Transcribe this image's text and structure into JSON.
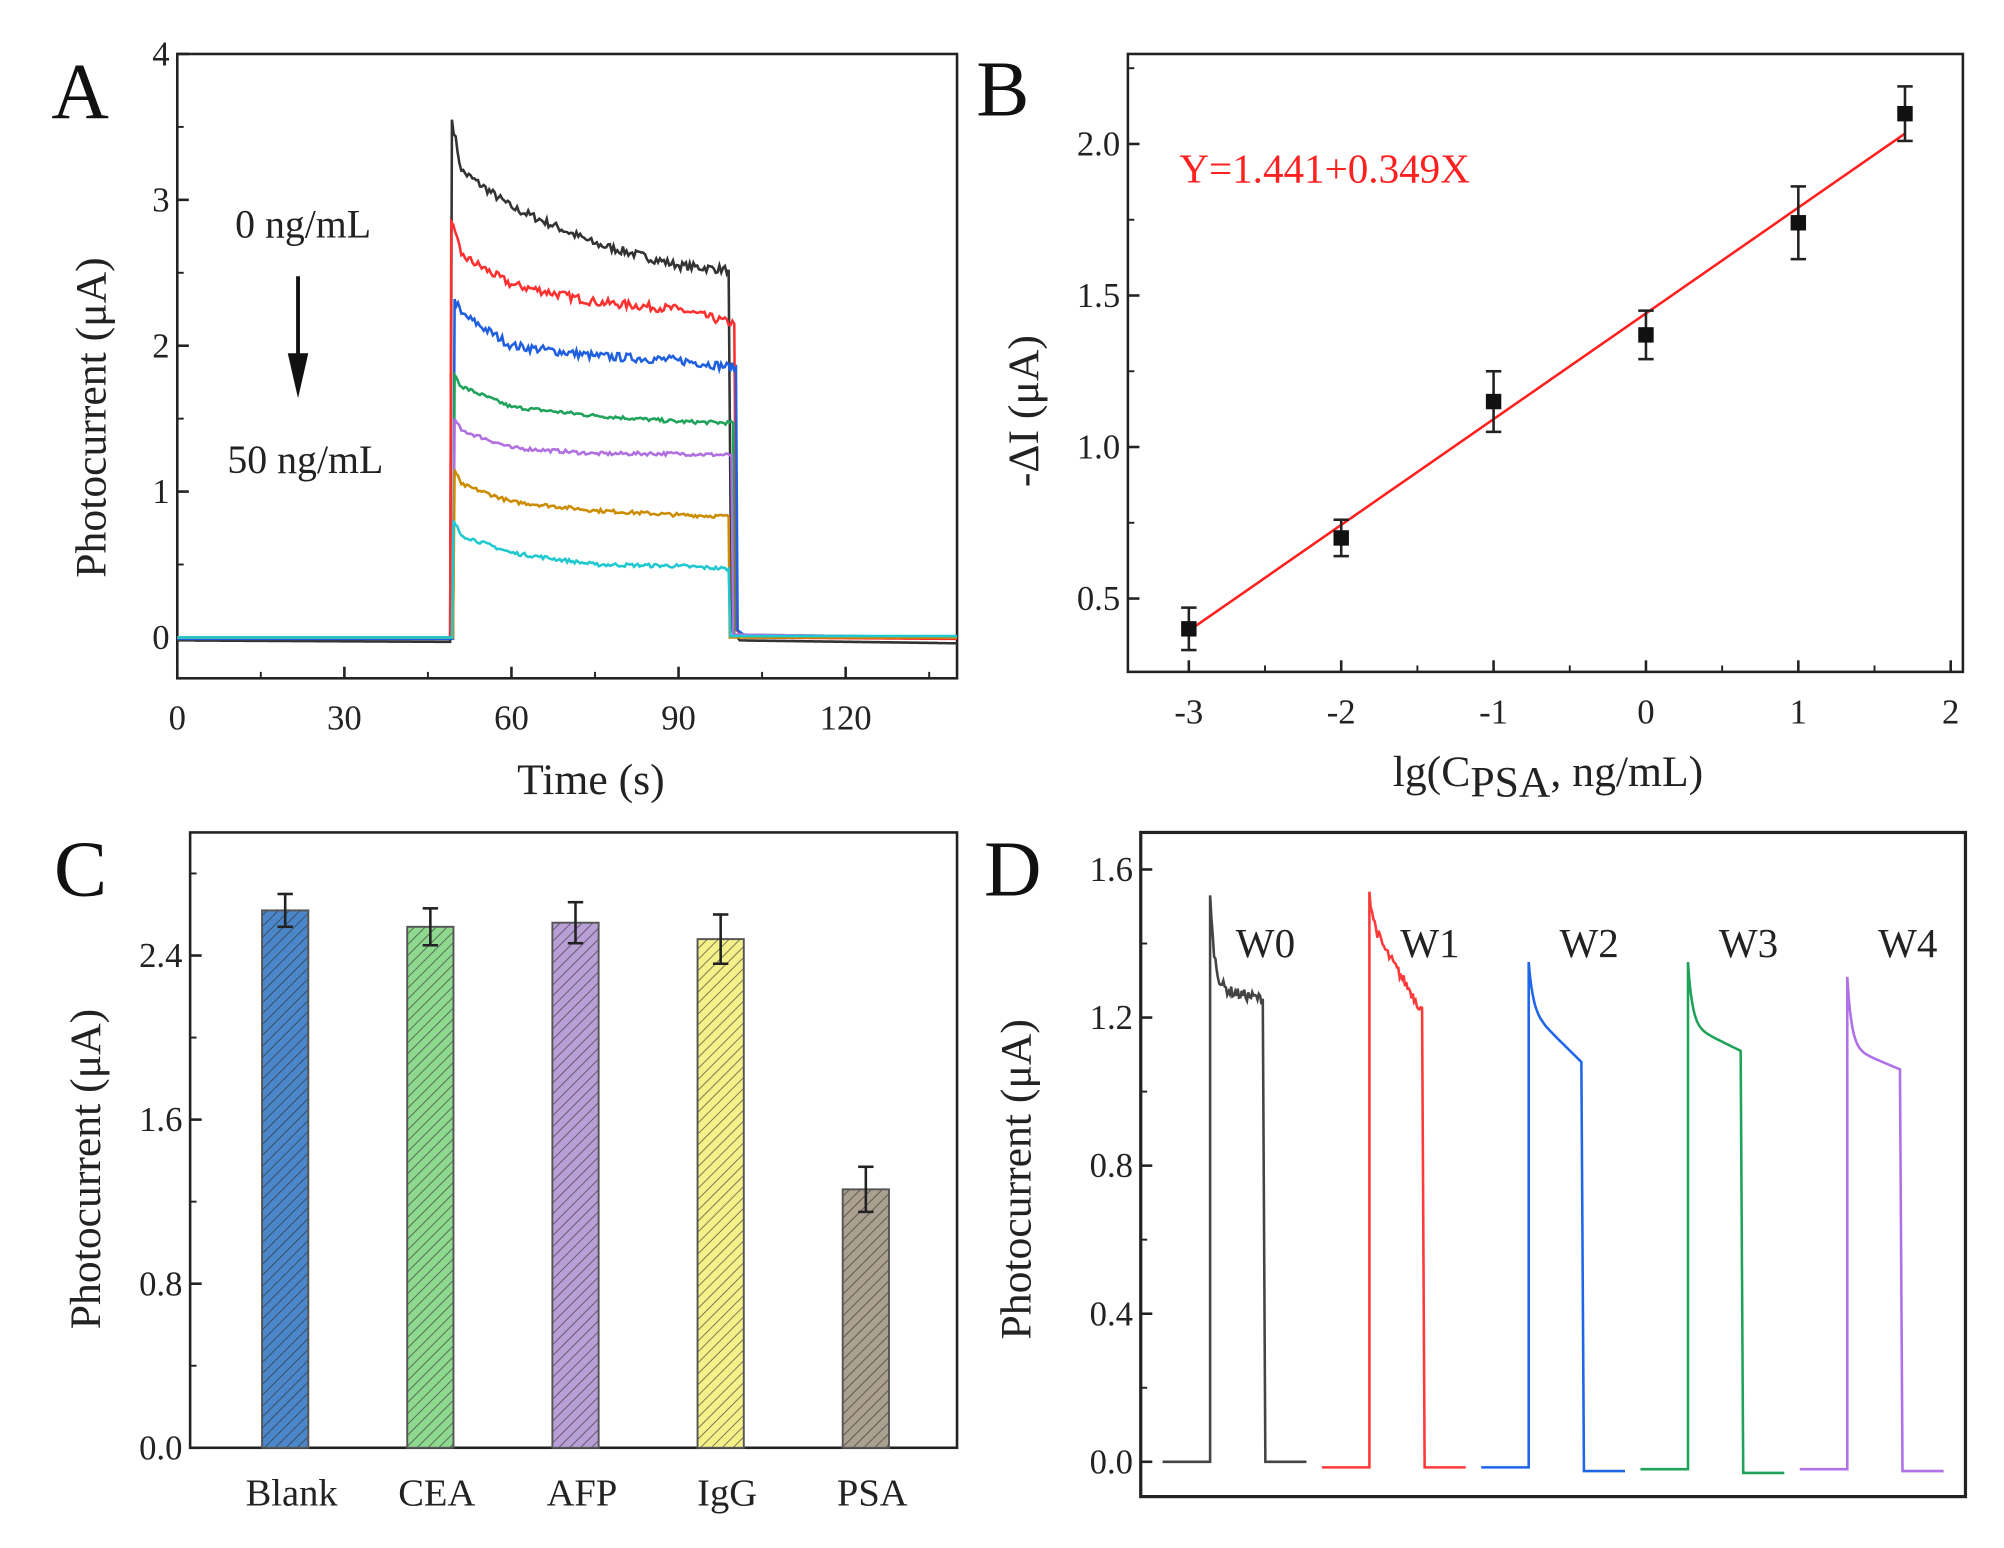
{
  "chart_data": [
    {
      "panel": "A",
      "type": "line",
      "xlabel": "Time (s)",
      "ylabel": "Photocurrent (μA)",
      "xlim": [
        0,
        140
      ],
      "ylim": [
        -0.28,
        4
      ],
      "xticks": [
        0,
        30,
        60,
        90,
        120
      ],
      "yticks": [
        0,
        1,
        2,
        3,
        4
      ],
      "grid": false,
      "annotations": {
        "top": "0 ng/mL",
        "bottom": "50 ng/mL",
        "arrow": "down"
      },
      "series": [
        {
          "color": "#333333",
          "points": [
            [
              0,
              -0.02
            ],
            [
              49,
              -0.03
            ],
            [
              49.3,
              3.55
            ],
            [
              51,
              3.2
            ],
            [
              60,
              2.95
            ],
            [
              75,
              2.7
            ],
            [
              90,
              2.55
            ],
            [
              99,
              2.52
            ],
            [
              99.5,
              0.05
            ],
            [
              101,
              -0.02
            ],
            [
              140,
              -0.04
            ]
          ]
        },
        {
          "color": "#ff3030",
          "points": [
            [
              0,
              -0.01
            ],
            [
              49,
              -0.01
            ],
            [
              49.2,
              2.85
            ],
            [
              51,
              2.62
            ],
            [
              60,
              2.42
            ],
            [
              75,
              2.3
            ],
            [
              90,
              2.25
            ],
            [
              100,
              2.15
            ],
            [
              100.4,
              0.05
            ],
            [
              102,
              0.0
            ],
            [
              140,
              -0.01
            ]
          ]
        },
        {
          "color": "#1f5fe0",
          "points": [
            [
              0,
              -0.01
            ],
            [
              49.5,
              -0.01
            ],
            [
              49.8,
              2.32
            ],
            [
              51,
              2.22
            ],
            [
              60,
              2.0
            ],
            [
              75,
              1.93
            ],
            [
              90,
              1.9
            ],
            [
              100.3,
              1.85
            ],
            [
              100.6,
              0.05
            ],
            [
              102,
              0.01
            ],
            [
              140,
              0.0
            ]
          ]
        },
        {
          "color": "#1fa35a",
          "points": [
            [
              0,
              0.0
            ],
            [
              49.5,
              0.0
            ],
            [
              49.8,
              1.8
            ],
            [
              51,
              1.72
            ],
            [
              60,
              1.58
            ],
            [
              75,
              1.52
            ],
            [
              90,
              1.48
            ],
            [
              99.8,
              1.47
            ],
            [
              100,
              0.02
            ],
            [
              140,
              0.0
            ]
          ]
        },
        {
          "color": "#b070e0",
          "points": [
            [
              0,
              0.0
            ],
            [
              49.5,
              0.0
            ],
            [
              49.8,
              1.5
            ],
            [
              51,
              1.42
            ],
            [
              60,
              1.3
            ],
            [
              75,
              1.26
            ],
            [
              90,
              1.26
            ],
            [
              99.5,
              1.25
            ],
            [
              99.8,
              0.02
            ],
            [
              140,
              0.0
            ]
          ]
        },
        {
          "color": "#cc8c00",
          "points": [
            [
              0,
              0.0
            ],
            [
              49.5,
              0.0
            ],
            [
              49.8,
              1.15
            ],
            [
              51,
              1.05
            ],
            [
              60,
              0.93
            ],
            [
              75,
              0.87
            ],
            [
              90,
              0.84
            ],
            [
              99,
              0.83
            ],
            [
              99.2,
              0.0
            ],
            [
              140,
              0.0
            ]
          ]
        },
        {
          "color": "#20c8d0",
          "points": [
            [
              0,
              0.0
            ],
            [
              49.3,
              0.0
            ],
            [
              49.6,
              0.8
            ],
            [
              51,
              0.7
            ],
            [
              60,
              0.58
            ],
            [
              75,
              0.5
            ],
            [
              90,
              0.49
            ],
            [
              99,
              0.47
            ],
            [
              99.3,
              0.01
            ],
            [
              140,
              0.01
            ]
          ]
        }
      ]
    },
    {
      "panel": "B",
      "type": "scatter",
      "xlabel_parts": [
        "lg(C",
        "PSA",
        ", ng/mL)"
      ],
      "ylabel": "-ΔI (μA)",
      "xlim": [
        -3.4,
        2.08
      ],
      "ylim": [
        0.258,
        2.297
      ],
      "xticks": [
        -3,
        -2,
        -1,
        0,
        1,
        2
      ],
      "yticks": [
        0.5,
        1.0,
        1.5,
        2.0
      ],
      "grid": false,
      "equation": "Y=1.441+0.349X",
      "fit": {
        "intercept": 1.441,
        "slope": 0.349,
        "range": [
          -3,
          1.7
        ],
        "color": "#ff2020"
      },
      "points": [
        {
          "x": -3,
          "y": 0.4,
          "err": 0.07
        },
        {
          "x": -2,
          "y": 0.7,
          "err": 0.06
        },
        {
          "x": -1,
          "y": 1.15,
          "err": 0.1
        },
        {
          "x": 0,
          "y": 1.37,
          "err": 0.08
        },
        {
          "x": 1,
          "y": 1.74,
          "err": 0.12
        },
        {
          "x": 1.7,
          "y": 2.1,
          "err": 0.09
        }
      ]
    },
    {
      "panel": "C",
      "type": "bar",
      "ylabel": "Photocurrent (μA)",
      "ylim": [
        0,
        3.0
      ],
      "yticks": [
        0.0,
        0.8,
        1.6,
        2.4
      ],
      "categories": [
        "Blank",
        "CEA",
        "AFP",
        "IgG",
        "PSA"
      ],
      "values": [
        2.62,
        2.54,
        2.56,
        2.48,
        1.26
      ],
      "errors": [
        0.08,
        0.09,
        0.1,
        0.12,
        0.11
      ],
      "colors": [
        "#4a86c8",
        "#8fd88f",
        "#b8a0d6",
        "#f4f08a",
        "#aaa090"
      ],
      "pattern": "hatched"
    },
    {
      "panel": "D",
      "type": "line",
      "ylabel": "Photocurrent (μA)",
      "ylim": [
        -0.094,
        1.7
      ],
      "yticks": [
        0.0,
        0.4,
        0.8,
        1.2,
        1.6
      ],
      "grid": false,
      "series": [
        {
          "name": "W0",
          "color": "#444444",
          "baseline": 0.0,
          "peak": 1.53,
          "plateau_start": 1.28,
          "plateau_end": 1.25,
          "after": 0.0
        },
        {
          "name": "W1",
          "color": "#ff3a3a",
          "baseline": -0.015,
          "peak": 1.54,
          "plateau_start": 1.45,
          "plateau_end": 1.22,
          "after": -0.015
        },
        {
          "name": "W2",
          "color": "#1f66e8",
          "baseline": -0.015,
          "peak": 1.35,
          "plateau_start": 1.22,
          "plateau_end": 1.08,
          "after": -0.025
        },
        {
          "name": "W3",
          "color": "#1fa35a",
          "baseline": -0.02,
          "peak": 1.35,
          "plateau_start": 1.18,
          "plateau_end": 1.11,
          "after": -0.03
        },
        {
          "name": "W4",
          "color": "#b070e8",
          "baseline": -0.02,
          "peak": 1.31,
          "plateau_start": 1.12,
          "plateau_end": 1.06,
          "after": -0.025
        }
      ]
    }
  ],
  "panels": {
    "A": "A",
    "B": "B",
    "C": "C",
    "D": "D"
  }
}
